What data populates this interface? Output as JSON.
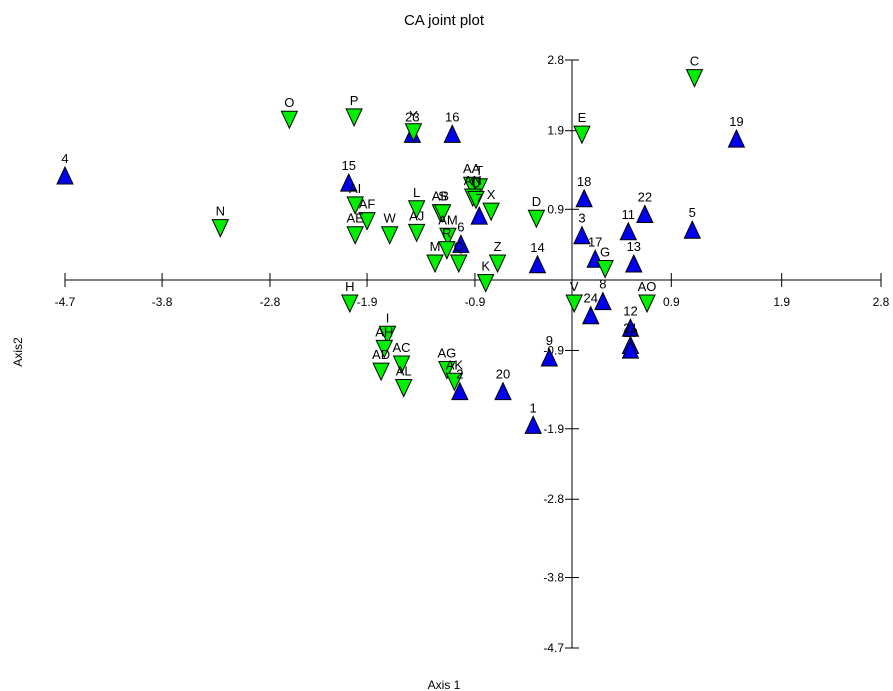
{
  "chart_data": {
    "type": "scatter",
    "title": "CA joint plot",
    "xlabel": "Axis 1",
    "ylabel": "Axis2",
    "xlim": [
      -4.7,
      2.8
    ],
    "ylim": [
      -4.7,
      2.8
    ],
    "x_ticks": [
      "-4.7",
      "-3.8",
      "-2.8",
      "-1.9",
      "-0.9",
      "0.9",
      "1.9",
      "2.8"
    ],
    "x_tick_values": [
      -4.7,
      -3.8,
      -2.8,
      -1.9,
      -0.9,
      0.9,
      1.9,
      2.8
    ],
    "y_ticks": [
      "2.8",
      "1.9",
      "0.9",
      "-0.9",
      "-1.9",
      "-2.8",
      "-3.8",
      "-4.7"
    ],
    "y_tick_values": [
      2.8,
      1.9,
      0.9,
      -0.9,
      -1.9,
      -2.8,
      -3.8,
      -4.7
    ],
    "grid": false,
    "legend": "none",
    "colors": {
      "sites": "#0000ee",
      "species": "#00ee00",
      "outline": "#000000"
    },
    "series": [
      {
        "marker": "triangle-up",
        "color": "#0000ee",
        "points": [
          {
            "label": "4",
            "x": -4.7,
            "y": 1.33
          },
          {
            "label": "15",
            "x": -2.07,
            "y": 1.24
          },
          {
            "label": "23",
            "x": -1.48,
            "y": 1.86
          },
          {
            "label": "16",
            "x": -1.11,
            "y": 1.86
          },
          {
            "label": "7",
            "x": -0.86,
            "y": 0.82
          },
          {
            "label": "6",
            "x": -1.03,
            "y": 0.46
          },
          {
            "label": "14",
            "x": -0.32,
            "y": 0.2
          },
          {
            "label": "18",
            "x": 0.11,
            "y": 1.04
          },
          {
            "label": "3",
            "x": 0.09,
            "y": 0.57
          },
          {
            "label": "17",
            "x": 0.21,
            "y": 0.27
          },
          {
            "label": "22",
            "x": 0.66,
            "y": 0.84
          },
          {
            "label": "11",
            "x": 0.51,
            "y": 0.62
          },
          {
            "label": "13",
            "x": 0.56,
            "y": 0.21
          },
          {
            "label": "5",
            "x": 1.09,
            "y": 0.64
          },
          {
            "label": "19",
            "x": 1.49,
            "y": 1.8
          },
          {
            "label": "8",
            "x": 0.28,
            "y": -0.27
          },
          {
            "label": "24",
            "x": 0.17,
            "y": -0.45
          },
          {
            "label": "12",
            "x": 0.53,
            "y": -0.61
          },
          {
            "label": "21",
            "x": 0.53,
            "y": -0.83
          },
          {
            "label": "10",
            "x": 0.53,
            "y": -0.89
          },
          {
            "label": "9",
            "x": -0.21,
            "y": -0.99
          },
          {
            "label": "2",
            "x": -1.04,
            "y": -1.42
          },
          {
            "label": "20",
            "x": -0.64,
            "y": -1.42
          },
          {
            "label": "1",
            "x": -0.36,
            "y": -1.85
          }
        ]
      },
      {
        "marker": "triangle-down",
        "color": "#00ee00",
        "points": [
          {
            "label": "C",
            "x": 1.11,
            "y": 2.57
          },
          {
            "label": "E",
            "x": 0.09,
            "y": 1.85
          },
          {
            "label": "O",
            "x": -2.62,
            "y": 2.04
          },
          {
            "label": "P",
            "x": -2.02,
            "y": 2.07
          },
          {
            "label": "Y",
            "x": -1.47,
            "y": 1.88
          },
          {
            "label": "N",
            "x": -3.26,
            "y": 0.66
          },
          {
            "label": "AI",
            "x": -2.01,
            "y": 0.95
          },
          {
            "label": "AF",
            "x": -1.9,
            "y": 0.75
          },
          {
            "label": "AE",
            "x": -2.01,
            "y": 0.57
          },
          {
            "label": "W",
            "x": -1.69,
            "y": 0.57
          },
          {
            "label": "AJ",
            "x": -1.44,
            "y": 0.6
          },
          {
            "label": "L",
            "x": -1.44,
            "y": 0.9
          },
          {
            "label": "AB",
            "x": -1.22,
            "y": 0.85
          },
          {
            "label": "S",
            "x": -1.2,
            "y": 0.85
          },
          {
            "label": "AM",
            "x": -1.15,
            "y": 0.55
          },
          {
            "label": "AA",
            "x": -0.93,
            "y": 1.2
          },
          {
            "label": "T",
            "x": -0.86,
            "y": 1.18
          },
          {
            "label": "AN",
            "x": -0.92,
            "y": 1.05
          },
          {
            "label": "U",
            "x": -0.89,
            "y": 1.02
          },
          {
            "label": "X",
            "x": -0.75,
            "y": 0.87
          },
          {
            "label": "D",
            "x": -0.33,
            "y": 0.78
          },
          {
            "label": "R",
            "x": -1.16,
            "y": 0.38
          },
          {
            "label": "M",
            "x": -1.27,
            "y": 0.21
          },
          {
            "label": "Q",
            "x": -1.05,
            "y": 0.21
          },
          {
            "label": "Z",
            "x": -0.69,
            "y": 0.21
          },
          {
            "label": "K",
            "x": -0.8,
            "y": -0.04
          },
          {
            "label": "G",
            "x": 0.3,
            "y": 0.14
          },
          {
            "label": "V",
            "x": 0.02,
            "y": -0.3
          },
          {
            "label": "AO",
            "x": 0.68,
            "y": -0.3
          },
          {
            "label": "H",
            "x": -2.06,
            "y": -0.3
          },
          {
            "label": "I",
            "x": -1.71,
            "y": -0.7
          },
          {
            "label": "AH",
            "x": -1.74,
            "y": -0.88
          },
          {
            "label": "AC",
            "x": -1.58,
            "y": -1.08
          },
          {
            "label": "AD",
            "x": -1.77,
            "y": -1.17
          },
          {
            "label": "AL",
            "x": -1.56,
            "y": -1.38
          },
          {
            "label": "AG",
            "x": -1.16,
            "y": -1.15
          },
          {
            "label": "AK",
            "x": -1.09,
            "y": -1.3
          }
        ]
      }
    ]
  }
}
